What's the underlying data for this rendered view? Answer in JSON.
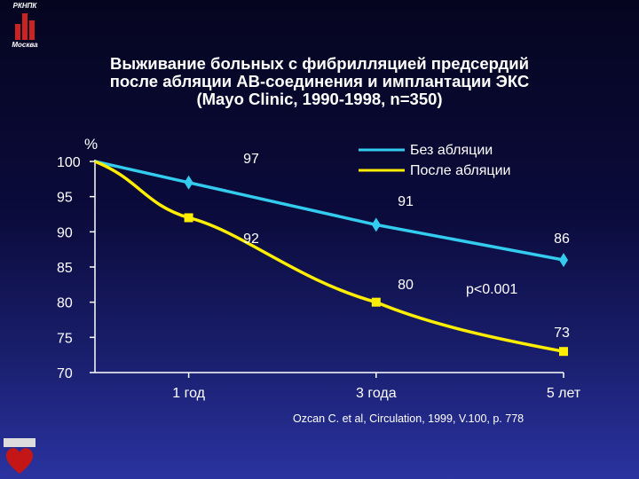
{
  "logo": {
    "top_text": "РКНПК",
    "bottom_text": "Москва"
  },
  "title": {
    "line1": "Выживание больных с фибрилляцией предсердий",
    "line2": "после абляции АВ-соединения и имплантации ЭКС",
    "line3": "(Mayo Clinic, 1990-1998, n=350)"
  },
  "source": "Ozcan C. et al, Circulation, 1999, V.100, p. 778",
  "colors": {
    "series_without": "#33ccee",
    "series_after": "#ffee00",
    "axis": "#ffffff",
    "text": "#ffffff"
  },
  "chart_data": {
    "type": "line",
    "title": "Выживание больных с фибрилляцией предсердий после абляции АВ-соединения и имплантации ЭКС (Mayo Clinic, 1990-1998, n=350)",
    "ylabel": "%",
    "xlabel": "",
    "ylim": [
      70,
      100
    ],
    "yticks": [
      "100",
      "95",
      "90",
      "85",
      "80",
      "75",
      "70"
    ],
    "categories": [
      "",
      "1 год",
      "3 года",
      "5 лет"
    ],
    "x": [
      0,
      1,
      3,
      5
    ],
    "grid": false,
    "legend_position": "top-right",
    "annotation": "p<0.001",
    "series": [
      {
        "name": "Без абляции",
        "color": "#33ccee",
        "marker": "diamond",
        "x": [
          0,
          1,
          3,
          5
        ],
        "values": [
          100,
          97,
          91,
          86
        ],
        "labels": [
          "",
          "97",
          "91",
          "86"
        ]
      },
      {
        "name": "После абляции",
        "color": "#ffee00",
        "marker": "square",
        "x": [
          0,
          1,
          3,
          5
        ],
        "values": [
          100,
          92,
          80,
          73
        ],
        "labels": [
          "",
          "92",
          "80",
          "73"
        ]
      }
    ]
  }
}
